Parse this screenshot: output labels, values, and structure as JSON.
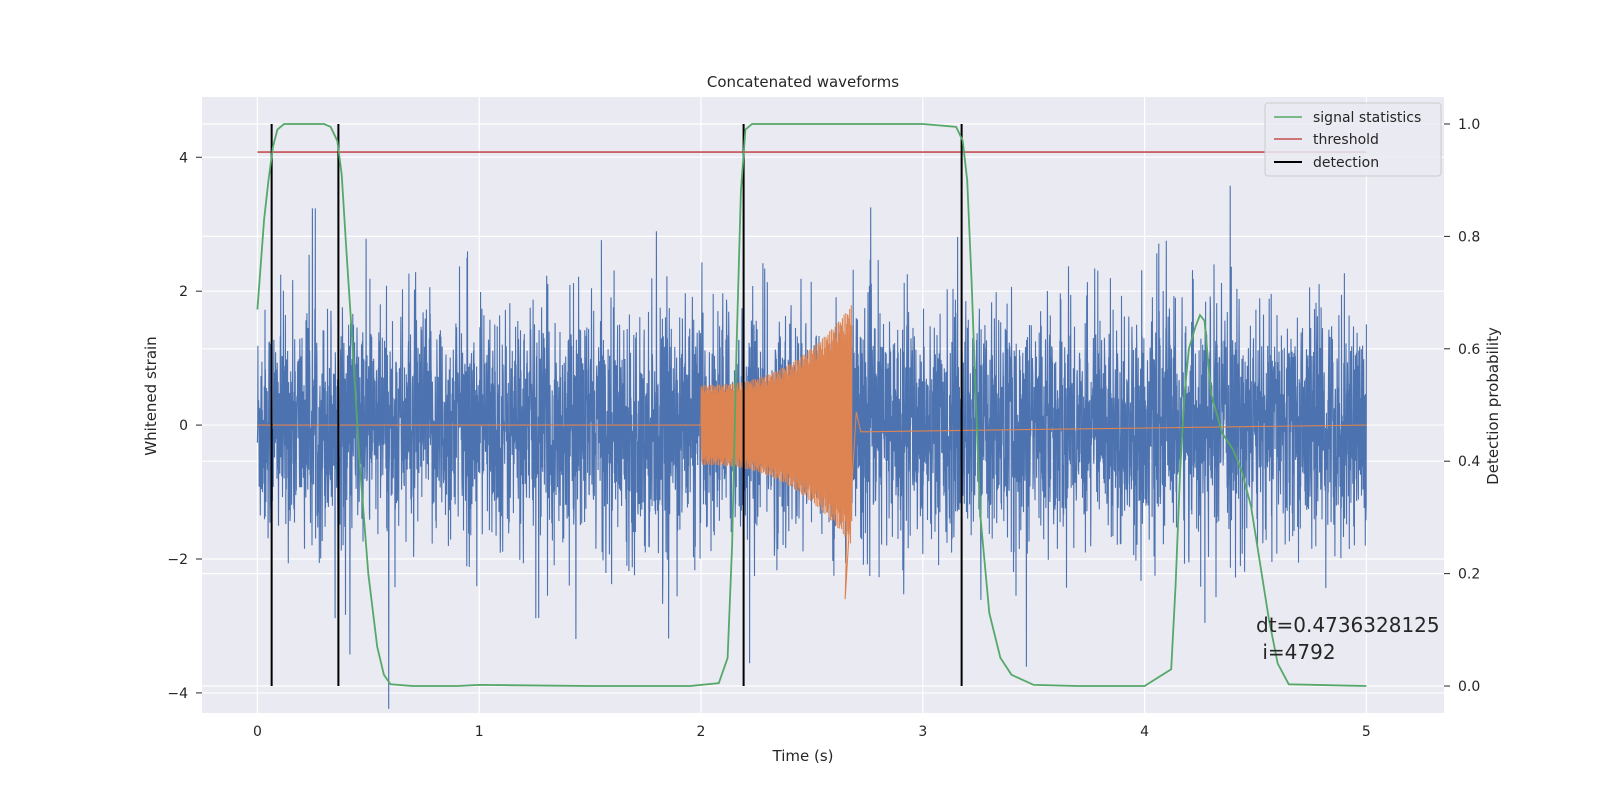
{
  "chart_data": {
    "type": "line",
    "title": "Concatenated waveforms",
    "xlabel": "Time (s)",
    "ylabel": "Whitened strain",
    "y2label": "Detection probability",
    "xlim": [
      -0.25,
      5.35
    ],
    "ylim": [
      -4.3,
      4.9
    ],
    "y2lim": [
      -0.048,
      1.048
    ],
    "xticks": [
      0,
      1,
      2,
      3,
      4,
      5
    ],
    "yticks": [
      -4,
      -2,
      0,
      2,
      4
    ],
    "y2ticks": [
      0.0,
      0.2,
      0.4,
      0.6,
      0.8,
      1.0
    ],
    "xtick_labels": [
      "0",
      "1",
      "2",
      "3",
      "4",
      "5"
    ],
    "ytick_labels": [
      "−4",
      "−2",
      "0",
      "2",
      "4"
    ],
    "y2tick_labels": [
      "0.0",
      "0.2",
      "0.4",
      "0.6",
      "0.8",
      "1.0"
    ],
    "grid": true,
    "legend_position": "top-right",
    "series": [
      {
        "name": "signal statistics",
        "axis": "right",
        "color": "#55a868",
        "x": [
          0.0,
          0.03,
          0.05,
          0.07,
          0.09,
          0.12,
          0.15,
          0.2,
          0.25,
          0.3,
          0.33,
          0.36,
          0.38,
          0.4,
          0.43,
          0.46,
          0.5,
          0.54,
          0.57,
          0.6,
          0.7,
          0.9,
          1.0,
          1.5,
          1.95,
          2.08,
          2.12,
          2.14,
          2.16,
          2.18,
          2.2,
          2.23,
          2.3,
          3.0,
          3.15,
          3.18,
          3.2,
          3.22,
          3.24,
          3.26,
          3.3,
          3.35,
          3.4,
          3.5,
          3.7,
          4.0,
          4.12,
          4.14,
          4.16,
          4.18,
          4.2,
          4.23,
          4.25,
          4.27,
          4.3,
          4.35,
          4.4,
          4.44,
          4.48,
          4.52,
          4.56,
          4.6,
          4.65,
          5.0
        ],
        "y": [
          0.67,
          0.83,
          0.9,
          0.96,
          0.99,
          1.0,
          1.0,
          1.0,
          1.0,
          1.0,
          0.995,
          0.97,
          0.91,
          0.78,
          0.6,
          0.4,
          0.2,
          0.07,
          0.02,
          0.003,
          0.0,
          0.0,
          0.002,
          0.0,
          0.0,
          0.005,
          0.05,
          0.25,
          0.6,
          0.88,
          0.99,
          1.0,
          1.0,
          1.0,
          0.995,
          0.97,
          0.9,
          0.72,
          0.5,
          0.3,
          0.13,
          0.05,
          0.02,
          0.002,
          0.0,
          0.0,
          0.03,
          0.18,
          0.38,
          0.52,
          0.6,
          0.64,
          0.66,
          0.65,
          0.52,
          0.45,
          0.42,
          0.38,
          0.32,
          0.22,
          0.12,
          0.04,
          0.003,
          0.0
        ]
      },
      {
        "name": "threshold",
        "axis": "right",
        "color": "#c44e52",
        "x": [
          0.0,
          5.0
        ],
        "y": [
          0.95,
          0.95
        ]
      },
      {
        "name": "detection",
        "axis": "right",
        "color": "#000000",
        "x": [
          0.064,
          0.064,
          0.365,
          0.365,
          2.192,
          2.192,
          3.175,
          3.175
        ],
        "segments_x": [
          0.064,
          0.365,
          2.192,
          3.175
        ]
      },
      {
        "name": "",
        "axis": "left",
        "color": "#4c72b0",
        "kind": "noise",
        "x_range": [
          0.0,
          5.0
        ],
        "typical_peak": 2.2,
        "max_abs": 4.4
      },
      {
        "name": "",
        "axis": "left",
        "color": "#dd8452",
        "kind": "chirp",
        "x_range": [
          2.0,
          2.68
        ],
        "amp_start": 0.6,
        "amp_end": 1.8,
        "peak_time": 2.65,
        "peak_value": -2.6
      }
    ],
    "annotation": {
      "line1": "dt=0.4736328125",
      "line2": " i=4792"
    }
  }
}
